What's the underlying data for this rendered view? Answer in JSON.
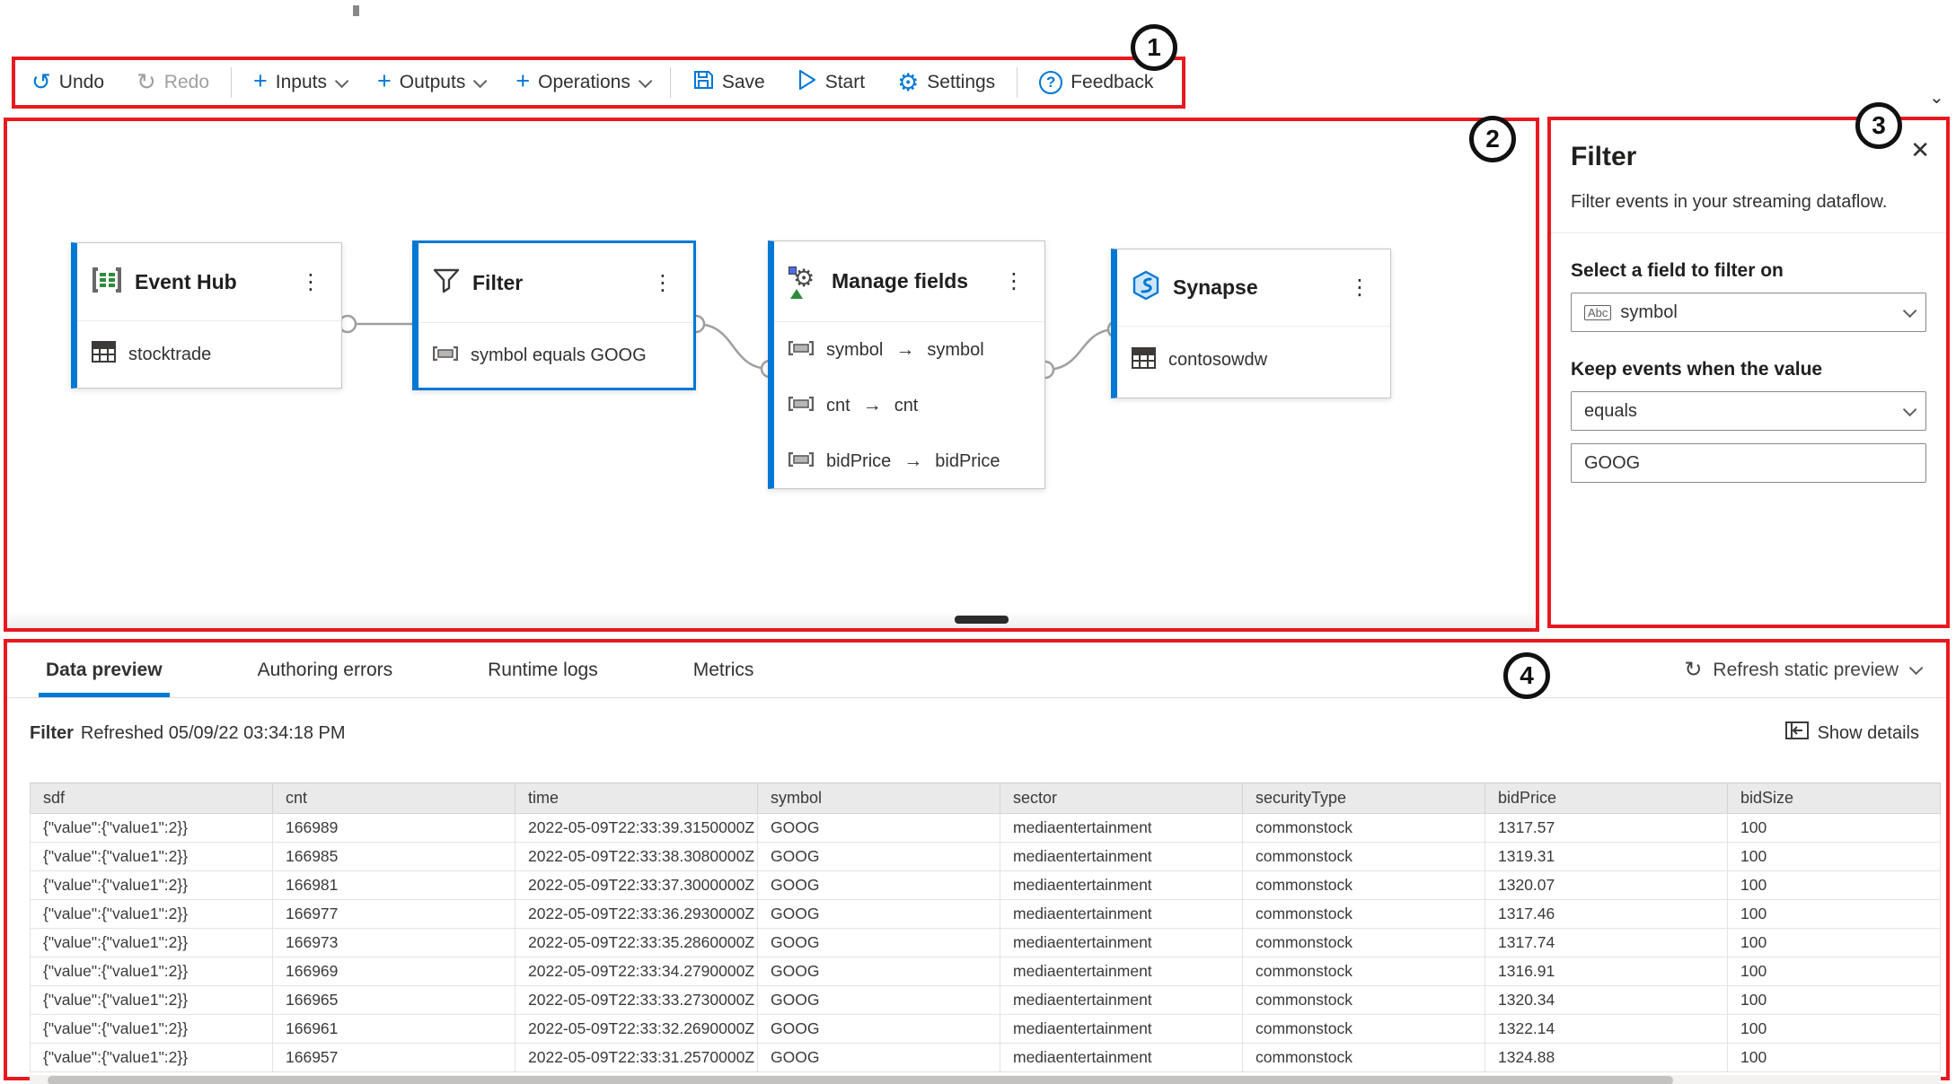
{
  "toolbar": {
    "undo_label": "Undo",
    "redo_label": "Redo",
    "inputs_label": "Inputs",
    "outputs_label": "Outputs",
    "operations_label": "Operations",
    "save_label": "Save",
    "start_label": "Start",
    "settings_label": "Settings",
    "feedback_label": "Feedback"
  },
  "annotations": {
    "n1": "1",
    "n2": "2",
    "n3": "3",
    "n4": "4"
  },
  "canvas": {
    "nodes": [
      {
        "title": "Event Hub",
        "subtitle": "stocktrade"
      },
      {
        "title": "Filter",
        "subtitle": "symbol equals GOOG"
      },
      {
        "title": "Manage fields",
        "fields": [
          {
            "from": "symbol",
            "to": "symbol"
          },
          {
            "from": "cnt",
            "to": "cnt"
          },
          {
            "from": "bidPrice",
            "to": "bidPrice"
          }
        ]
      },
      {
        "title": "Synapse",
        "subtitle": "contosowdw"
      }
    ]
  },
  "filter_panel": {
    "title": "Filter",
    "description": "Filter events in your streaming dataflow.",
    "field_label": "Select a field to filter on",
    "field_type_badge": "Abc",
    "field_value": "symbol",
    "condition_label": "Keep events when the value",
    "condition_value": "equals",
    "value_input": "GOOG"
  },
  "bottom": {
    "tabs": [
      {
        "label": "Data preview"
      },
      {
        "label": "Authoring errors"
      },
      {
        "label": "Runtime logs"
      },
      {
        "label": "Metrics"
      }
    ],
    "refresh_label": "Refresh static preview",
    "status_prefix": "Filter",
    "status_text": "Refreshed 05/09/22 03:34:18 PM",
    "show_details_label": "Show details",
    "table": {
      "columns": [
        "sdf",
        "cnt",
        "time",
        "symbol",
        "sector",
        "securityType",
        "bidPrice",
        "bidSize"
      ],
      "rows": [
        [
          "{\"value\":{\"value1\":2}}",
          "166989",
          "2022-05-09T22:33:39.3150000Z",
          "GOOG",
          "mediaentertainment",
          "commonstock",
          "1317.57",
          "100"
        ],
        [
          "{\"value\":{\"value1\":2}}",
          "166985",
          "2022-05-09T22:33:38.3080000Z",
          "GOOG",
          "mediaentertainment",
          "commonstock",
          "1319.31",
          "100"
        ],
        [
          "{\"value\":{\"value1\":2}}",
          "166981",
          "2022-05-09T22:33:37.3000000Z",
          "GOOG",
          "mediaentertainment",
          "commonstock",
          "1320.07",
          "100"
        ],
        [
          "{\"value\":{\"value1\":2}}",
          "166977",
          "2022-05-09T22:33:36.2930000Z",
          "GOOG",
          "mediaentertainment",
          "commonstock",
          "1317.46",
          "100"
        ],
        [
          "{\"value\":{\"value1\":2}}",
          "166973",
          "2022-05-09T22:33:35.2860000Z",
          "GOOG",
          "mediaentertainment",
          "commonstock",
          "1317.74",
          "100"
        ],
        [
          "{\"value\":{\"value1\":2}}",
          "166969",
          "2022-05-09T22:33:34.2790000Z",
          "GOOG",
          "mediaentertainment",
          "commonstock",
          "1316.91",
          "100"
        ],
        [
          "{\"value\":{\"value1\":2}}",
          "166965",
          "2022-05-09T22:33:33.2730000Z",
          "GOOG",
          "mediaentertainment",
          "commonstock",
          "1320.34",
          "100"
        ],
        [
          "{\"value\":{\"value1\":2}}",
          "166961",
          "2022-05-09T22:33:32.2690000Z",
          "GOOG",
          "mediaentertainment",
          "commonstock",
          "1322.14",
          "100"
        ],
        [
          "{\"value\":{\"value1\":2}}",
          "166957",
          "2022-05-09T22:33:31.2570000Z",
          "GOOG",
          "mediaentertainment",
          "commonstock",
          "1324.88",
          "100"
        ]
      ]
    }
  },
  "colors": {
    "accent": "#0078d4",
    "annotation_red": "#e8191f"
  }
}
